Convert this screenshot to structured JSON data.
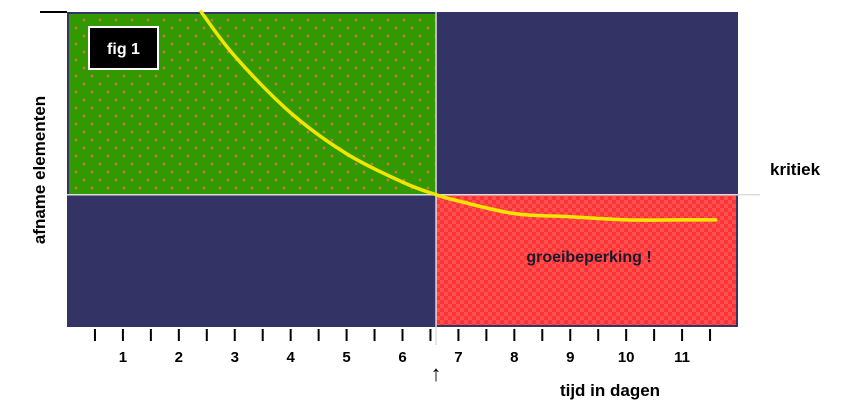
{
  "chart_data": {
    "type": "line",
    "badge": "fig 1",
    "xlabel": "tijd in dagen",
    "ylabel": "afname elementen",
    "critical_label": "kritiek",
    "zone_label": "groeibeperking !",
    "marker": "↑",
    "categories": [
      "1",
      "2",
      "3",
      "4",
      "5",
      "6",
      "7",
      "8",
      "9",
      "10",
      "11"
    ],
    "xlim": [
      0,
      12
    ],
    "critical_x": 6.6,
    "series": [
      {
        "x": [
          2.4,
          3,
          4,
          5,
          6,
          6.6,
          7,
          8,
          9,
          10,
          11,
          11.6
        ],
        "values": [
          1.0,
          0.86,
          0.68,
          0.55,
          0.46,
          0.42,
          0.4,
          0.36,
          0.35,
          0.34,
          0.34,
          0.34
        ]
      }
    ],
    "critical_y": 0.42,
    "colors": {
      "background": "#333366",
      "green_zone": "#339900",
      "red_zone": "#ff3333",
      "curve": "#f2e600",
      "gridline": "#dddddd",
      "badge_bg": "#000000"
    }
  }
}
